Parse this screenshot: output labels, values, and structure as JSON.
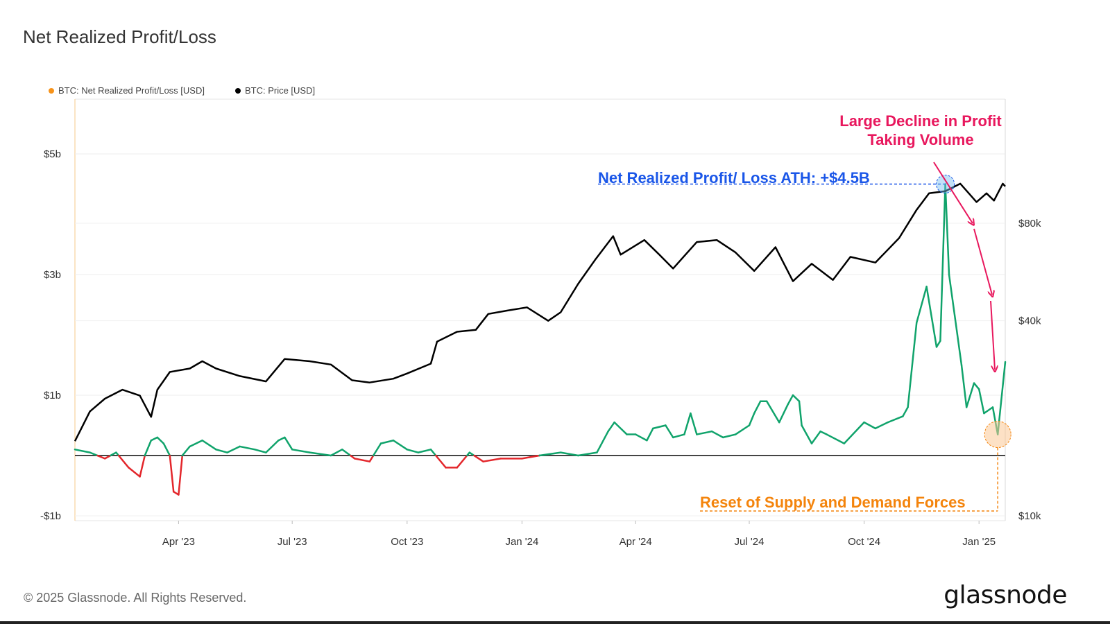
{
  "title": "Net Realized Profit/Loss",
  "legend": [
    {
      "label": "BTC: Net Realized Profit/Loss [USD]",
      "color": "#f7931a"
    },
    {
      "label": "BTC: Price [USD]",
      "color": "#000000"
    }
  ],
  "footer": "© 2025 Glassnode. All Rights Reserved.",
  "brand": "glassnode",
  "colors": {
    "profit": "#10a36b",
    "loss": "#e3262b",
    "price": "#000000",
    "ath_annotation": "#1a56e8",
    "decline_annotation": "#e8175d",
    "reset_annotation": "#f4840c"
  },
  "chart_data": {
    "type": "line",
    "title": "Net Realized Profit/Loss",
    "x_ticks": [
      "Apr '23",
      "Jul '23",
      "Oct '23",
      "Jan '24",
      "Apr '24",
      "Jul '24",
      "Oct '24",
      "Jan '25"
    ],
    "x_range": [
      "2023-01-08",
      "2025-01-22"
    ],
    "left_axis": {
      "ticks": [
        "$5b",
        "$3b",
        "$1b",
        "-$1b"
      ],
      "values": [
        5,
        3,
        1,
        -1
      ],
      "unit": "USD billions",
      "range": [
        -1.1,
        6.0
      ]
    },
    "right_axis": {
      "ticks": [
        "$80k",
        "$40k",
        "$10k"
      ],
      "values": [
        80000,
        40000,
        10000
      ],
      "scale": "log",
      "range": [
        9700,
        220000
      ]
    },
    "grid": true,
    "legend_position": "top-left",
    "series": [
      {
        "name": "BTC: Net Realized Profit/Loss [USD]",
        "axis": "left",
        "unit": "USD billions",
        "points": [
          [
            "2023-01-08",
            0.1
          ],
          [
            "2023-01-20",
            0.05
          ],
          [
            "2023-02-01",
            -0.05
          ],
          [
            "2023-02-10",
            0.05
          ],
          [
            "2023-02-20",
            -0.2
          ],
          [
            "2023-03-01",
            -0.35
          ],
          [
            "2023-03-05",
            0.0
          ],
          [
            "2023-03-10",
            0.25
          ],
          [
            "2023-03-15",
            0.3
          ],
          [
            "2023-03-20",
            0.2
          ],
          [
            "2023-03-25",
            0.0
          ],
          [
            "2023-03-28",
            -0.6
          ],
          [
            "2023-04-01",
            -0.65
          ],
          [
            "2023-04-04",
            0.0
          ],
          [
            "2023-04-10",
            0.15
          ],
          [
            "2023-04-20",
            0.25
          ],
          [
            "2023-05-01",
            0.1
          ],
          [
            "2023-05-10",
            0.05
          ],
          [
            "2023-05-20",
            0.15
          ],
          [
            "2023-06-01",
            0.1
          ],
          [
            "2023-06-10",
            0.05
          ],
          [
            "2023-06-20",
            0.25
          ],
          [
            "2023-06-25",
            0.3
          ],
          [
            "2023-07-01",
            0.1
          ],
          [
            "2023-07-15",
            0.05
          ],
          [
            "2023-08-01",
            0.0
          ],
          [
            "2023-08-10",
            0.1
          ],
          [
            "2023-08-20",
            -0.05
          ],
          [
            "2023-09-01",
            -0.1
          ],
          [
            "2023-09-10",
            0.2
          ],
          [
            "2023-09-20",
            0.25
          ],
          [
            "2023-10-01",
            0.1
          ],
          [
            "2023-10-10",
            0.05
          ],
          [
            "2023-10-20",
            0.1
          ],
          [
            "2023-11-01",
            -0.2
          ],
          [
            "2023-11-10",
            -0.2
          ],
          [
            "2023-11-20",
            0.05
          ],
          [
            "2023-12-01",
            -0.1
          ],
          [
            "2023-12-15",
            -0.05
          ],
          [
            "2024-01-01",
            -0.05
          ],
          [
            "2024-01-15",
            0.0
          ],
          [
            "2024-02-01",
            0.05
          ],
          [
            "2024-02-15",
            0.0
          ],
          [
            "2024-03-01",
            0.05
          ],
          [
            "2024-03-10",
            0.4
          ],
          [
            "2024-03-15",
            0.55
          ],
          [
            "2024-03-25",
            0.35
          ],
          [
            "2024-04-01",
            0.35
          ],
          [
            "2024-04-10",
            0.25
          ],
          [
            "2024-04-15",
            0.45
          ],
          [
            "2024-04-25",
            0.5
          ],
          [
            "2024-05-01",
            0.3
          ],
          [
            "2024-05-10",
            0.35
          ],
          [
            "2024-05-15",
            0.7
          ],
          [
            "2024-05-20",
            0.35
          ],
          [
            "2024-06-01",
            0.4
          ],
          [
            "2024-06-10",
            0.3
          ],
          [
            "2024-06-20",
            0.35
          ],
          [
            "2024-07-01",
            0.5
          ],
          [
            "2024-07-05",
            0.7
          ],
          [
            "2024-07-10",
            0.9
          ],
          [
            "2024-07-15",
            0.9
          ],
          [
            "2024-07-25",
            0.55
          ],
          [
            "2024-08-01",
            0.85
          ],
          [
            "2024-08-05",
            1.0
          ],
          [
            "2024-08-10",
            0.9
          ],
          [
            "2024-08-12",
            0.5
          ],
          [
            "2024-08-20",
            0.2
          ],
          [
            "2024-08-27",
            0.4
          ],
          [
            "2024-09-01",
            0.35
          ],
          [
            "2024-09-15",
            0.2
          ],
          [
            "2024-10-01",
            0.55
          ],
          [
            "2024-10-10",
            0.45
          ],
          [
            "2024-10-20",
            0.55
          ],
          [
            "2024-11-01",
            0.65
          ],
          [
            "2024-11-05",
            0.8
          ],
          [
            "2024-11-12",
            2.2
          ],
          [
            "2024-11-20",
            2.8
          ],
          [
            "2024-11-28",
            1.8
          ],
          [
            "2024-12-01",
            1.9
          ],
          [
            "2024-12-05",
            4.5
          ],
          [
            "2024-12-08",
            3.0
          ],
          [
            "2024-12-12",
            2.4
          ],
          [
            "2024-12-18",
            1.5
          ],
          [
            "2024-12-22",
            0.8
          ],
          [
            "2024-12-28",
            1.2
          ],
          [
            "2025-01-01",
            1.1
          ],
          [
            "2025-01-05",
            0.7
          ],
          [
            "2025-01-12",
            0.8
          ],
          [
            "2025-01-16",
            0.35
          ],
          [
            "2025-01-22",
            1.55
          ]
        ]
      },
      {
        "name": "BTC: Price [USD]",
        "axis": "right",
        "unit": "USD",
        "points": [
          [
            "2023-01-08",
            17000
          ],
          [
            "2023-01-20",
            21000
          ],
          [
            "2023-02-01",
            23000
          ],
          [
            "2023-02-15",
            24500
          ],
          [
            "2023-03-01",
            23500
          ],
          [
            "2023-03-10",
            20200
          ],
          [
            "2023-03-15",
            24500
          ],
          [
            "2023-03-25",
            27800
          ],
          [
            "2023-04-10",
            28500
          ],
          [
            "2023-04-20",
            30000
          ],
          [
            "2023-05-01",
            28500
          ],
          [
            "2023-05-20",
            27000
          ],
          [
            "2023-06-10",
            26000
          ],
          [
            "2023-06-25",
            30500
          ],
          [
            "2023-07-15",
            30000
          ],
          [
            "2023-08-01",
            29300
          ],
          [
            "2023-08-18",
            26200
          ],
          [
            "2023-09-01",
            25800
          ],
          [
            "2023-09-20",
            26500
          ],
          [
            "2023-10-01",
            27500
          ],
          [
            "2023-10-20",
            29500
          ],
          [
            "2023-10-25",
            34500
          ],
          [
            "2023-11-10",
            37000
          ],
          [
            "2023-11-25",
            37500
          ],
          [
            "2023-12-05",
            42000
          ],
          [
            "2023-12-20",
            43000
          ],
          [
            "2024-01-05",
            44000
          ],
          [
            "2024-01-22",
            40000
          ],
          [
            "2024-02-01",
            42500
          ],
          [
            "2024-02-15",
            52000
          ],
          [
            "2024-02-29",
            62000
          ],
          [
            "2024-03-14",
            73000
          ],
          [
            "2024-03-20",
            64000
          ],
          [
            "2024-04-08",
            71000
          ],
          [
            "2024-04-20",
            64000
          ],
          [
            "2024-05-01",
            58000
          ],
          [
            "2024-05-20",
            70000
          ],
          [
            "2024-06-05",
            71000
          ],
          [
            "2024-06-20",
            65000
          ],
          [
            "2024-07-05",
            57000
          ],
          [
            "2024-07-22",
            67500
          ],
          [
            "2024-08-05",
            53000
          ],
          [
            "2024-08-20",
            60000
          ],
          [
            "2024-09-06",
            53500
          ],
          [
            "2024-09-20",
            63000
          ],
          [
            "2024-10-10",
            60500
          ],
          [
            "2024-10-29",
            72000
          ],
          [
            "2024-11-12",
            88000
          ],
          [
            "2024-11-22",
            99000
          ],
          [
            "2024-12-05",
            100500
          ],
          [
            "2024-12-17",
            106000
          ],
          [
            "2024-12-30",
            93000
          ],
          [
            "2025-01-07",
            99000
          ],
          [
            "2025-01-13",
            94000
          ],
          [
            "2025-01-20",
            106000
          ],
          [
            "2025-01-22",
            104000
          ]
        ]
      }
    ],
    "annotations": [
      {
        "text": "Net Realized Profit/ Loss ATH: +$4.5B",
        "color": "#1a56e8"
      },
      {
        "text_lines": [
          "Large Decline in Profit",
          "Taking Volume"
        ],
        "color": "#e8175d"
      },
      {
        "text": "Reset of Supply and Demand Forces",
        "color": "#f4840c"
      }
    ]
  }
}
